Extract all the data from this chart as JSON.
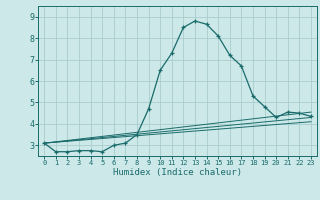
{
  "title": "",
  "xlabel": "Humidex (Indice chaleur)",
  "ylabel": "",
  "background_color": "#cce8e8",
  "grid_color": "#aacccc",
  "line_color": "#1a6b6b",
  "xlim": [
    -0.5,
    23.5
  ],
  "ylim": [
    2.5,
    9.5
  ],
  "yticks": [
    3,
    4,
    5,
    6,
    7,
    8,
    9
  ],
  "xticks": [
    0,
    1,
    2,
    3,
    4,
    5,
    6,
    7,
    8,
    9,
    10,
    11,
    12,
    13,
    14,
    15,
    16,
    17,
    18,
    19,
    20,
    21,
    22,
    23
  ],
  "main_line": {
    "x": [
      0,
      1,
      2,
      3,
      4,
      5,
      6,
      7,
      8,
      9,
      10,
      11,
      12,
      13,
      14,
      15,
      16,
      17,
      18,
      19,
      20,
      21,
      22,
      23
    ],
    "y": [
      3.1,
      2.7,
      2.7,
      2.75,
      2.75,
      2.7,
      3.0,
      3.1,
      3.5,
      4.7,
      6.5,
      7.3,
      8.5,
      8.8,
      8.65,
      8.1,
      7.2,
      6.7,
      5.3,
      4.8,
      4.3,
      4.55,
      4.5,
      4.35
    ]
  },
  "flat_lines": [
    {
      "x": [
        0,
        23
      ],
      "y": [
        3.1,
        4.55
      ]
    },
    {
      "x": [
        0,
        23
      ],
      "y": [
        3.1,
        4.3
      ]
    },
    {
      "x": [
        0,
        23
      ],
      "y": [
        3.1,
        4.1
      ]
    }
  ]
}
